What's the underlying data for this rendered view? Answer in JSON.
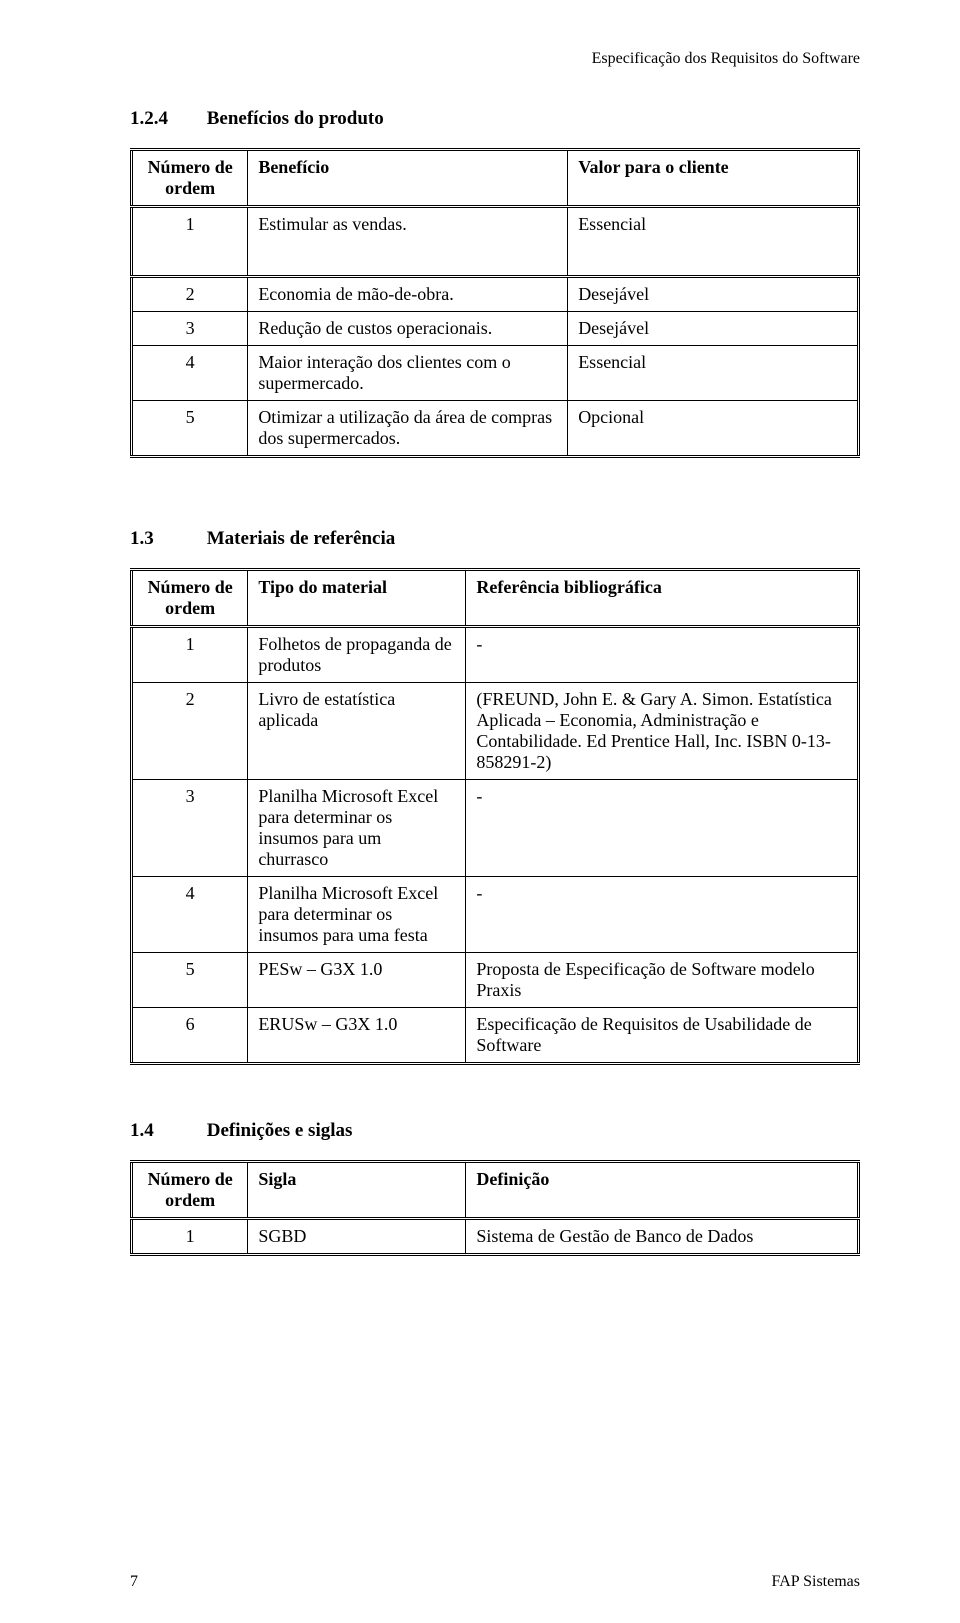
{
  "header": {
    "title": "Especificação dos Requisitos do Software"
  },
  "sections": {
    "benefits": {
      "number": "1.2.4",
      "title": "Benefícios do produto",
      "col_num": "Número de ordem",
      "col_benefit": "Benefício",
      "col_value": "Valor para o cliente",
      "rows1": [
        {
          "n": "1",
          "b": "Estimular as vendas.",
          "v": "Essencial"
        }
      ],
      "rows2": [
        {
          "n": "2",
          "b": "Economia de mão-de-obra.",
          "v": "Desejável"
        },
        {
          "n": "3",
          "b": "Redução de custos operacionais.",
          "v": "Desejável"
        },
        {
          "n": "4",
          "b": "Maior interação dos clientes com o supermercado.",
          "v": "Essencial"
        },
        {
          "n": "5",
          "b": "Otimizar a utilização da área de compras dos supermercados.",
          "v": "Opcional"
        }
      ]
    },
    "materials": {
      "number": "1.3",
      "title": "Materiais de referência",
      "col_num": "Número de ordem",
      "col_type": "Tipo do material",
      "col_ref": "Referência bibliográfica",
      "rows": [
        {
          "n": "1",
          "t": "Folhetos de propaganda de produtos",
          "r": "-",
          "center": true
        },
        {
          "n": "2",
          "t": "Livro de estatística aplicada",
          "r": "(FREUND, John E. & Gary A. Simon. Estatística Aplicada – Economia, Administração e Contabilidade. Ed Prentice Hall, Inc. ISBN 0-13-858291-2)",
          "center": false
        },
        {
          "n": "3",
          "t": "Planilha Microsoft Excel para determinar os insumos para um churrasco",
          "r": "-",
          "center": true
        },
        {
          "n": "4",
          "t": "Planilha Microsoft Excel para determinar os insumos para uma festa",
          "r": "-",
          "center": true
        },
        {
          "n": "5",
          "t": "PESw – G3X 1.0",
          "r": "Proposta de Especificação de Software modelo Praxis",
          "center": false
        },
        {
          "n": "6",
          "t": "ERUSw – G3X 1.0",
          "r": "Especificação de Requisitos de Usabilidade de Software",
          "center": false
        }
      ]
    },
    "definitions": {
      "number": "1.4",
      "title": "Definições e siglas",
      "col_num": "Número de ordem",
      "col_sigla": "Sigla",
      "col_def": "Definição",
      "rows": [
        {
          "n": "1",
          "s": "SGBD",
          "d": "Sistema de Gestão de Banco de Dados"
        }
      ]
    }
  },
  "footer": {
    "page": "7",
    "right": "FAP Sistemas"
  },
  "style": {
    "colwidths": {
      "benefits": {
        "c1": "16%",
        "c2": "44%",
        "c3": "40%"
      },
      "materials": {
        "c1": "16%",
        "c2": "30%",
        "c3": "54%"
      },
      "definitions": {
        "c1": "16%",
        "c2": "30%",
        "c3": "54%"
      }
    }
  }
}
